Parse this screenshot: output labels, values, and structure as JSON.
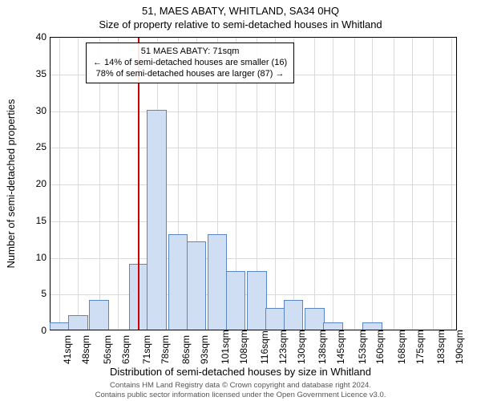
{
  "titles": {
    "line1": "51, MAES ABATY, WHITLAND, SA34 0HQ",
    "line2": "Size of property relative to semi-detached houses in Whitland"
  },
  "chart": {
    "type": "histogram",
    "background_color": "#ffffff",
    "grid_color": "#d9d9d9",
    "border_color": "#000000",
    "xlim": [
      37.5,
      192.5
    ],
    "ylim": [
      0,
      40
    ],
    "ytick_step": 5,
    "xticks": [
      41,
      48,
      56,
      63,
      71,
      78,
      86,
      93,
      101,
      108,
      116,
      123,
      130,
      138,
      145,
      153,
      160,
      168,
      175,
      183,
      190
    ],
    "xtick_unit": "sqm",
    "bin_width": 7.5,
    "bar_fill": "#cfdef3",
    "bar_stroke": "#5b86c4",
    "bins": [
      {
        "x": 41,
        "count": 1
      },
      {
        "x": 48,
        "count": 2
      },
      {
        "x": 56,
        "count": 4
      },
      {
        "x": 63,
        "count": 0
      },
      {
        "x": 71,
        "count": 9
      },
      {
        "x": 78,
        "count": 30
      },
      {
        "x": 86,
        "count": 13
      },
      {
        "x": 93,
        "count": 12
      },
      {
        "x": 101,
        "count": 13
      },
      {
        "x": 108,
        "count": 8
      },
      {
        "x": 116,
        "count": 8
      },
      {
        "x": 123,
        "count": 3
      },
      {
        "x": 130,
        "count": 4
      },
      {
        "x": 138,
        "count": 3
      },
      {
        "x": 145,
        "count": 1
      },
      {
        "x": 153,
        "count": 0
      },
      {
        "x": 160,
        "count": 1
      },
      {
        "x": 168,
        "count": 0
      },
      {
        "x": 175,
        "count": 0
      },
      {
        "x": 183,
        "count": 0
      },
      {
        "x": 190,
        "count": 0
      }
    ],
    "marker": {
      "x": 71,
      "color": "#cc0000",
      "width": 2
    },
    "annotation": {
      "lines": [
        "51 MAES ABATY: 71sqm",
        "← 14% of semi-detached houses are smaller (16)",
        "78% of semi-detached houses are larger (87) →"
      ]
    },
    "ylabel": "Number of semi-detached properties",
    "xlabel": "Distribution of semi-detached houses by size in Whitland",
    "label_fontsize": 13,
    "tick_fontsize": 12,
    "annotation_fontsize": 11
  },
  "footer": {
    "line1": "Contains HM Land Registry data © Crown copyright and database right 2024.",
    "line2": "Contains public sector information licensed under the Open Government Licence v3.0."
  }
}
